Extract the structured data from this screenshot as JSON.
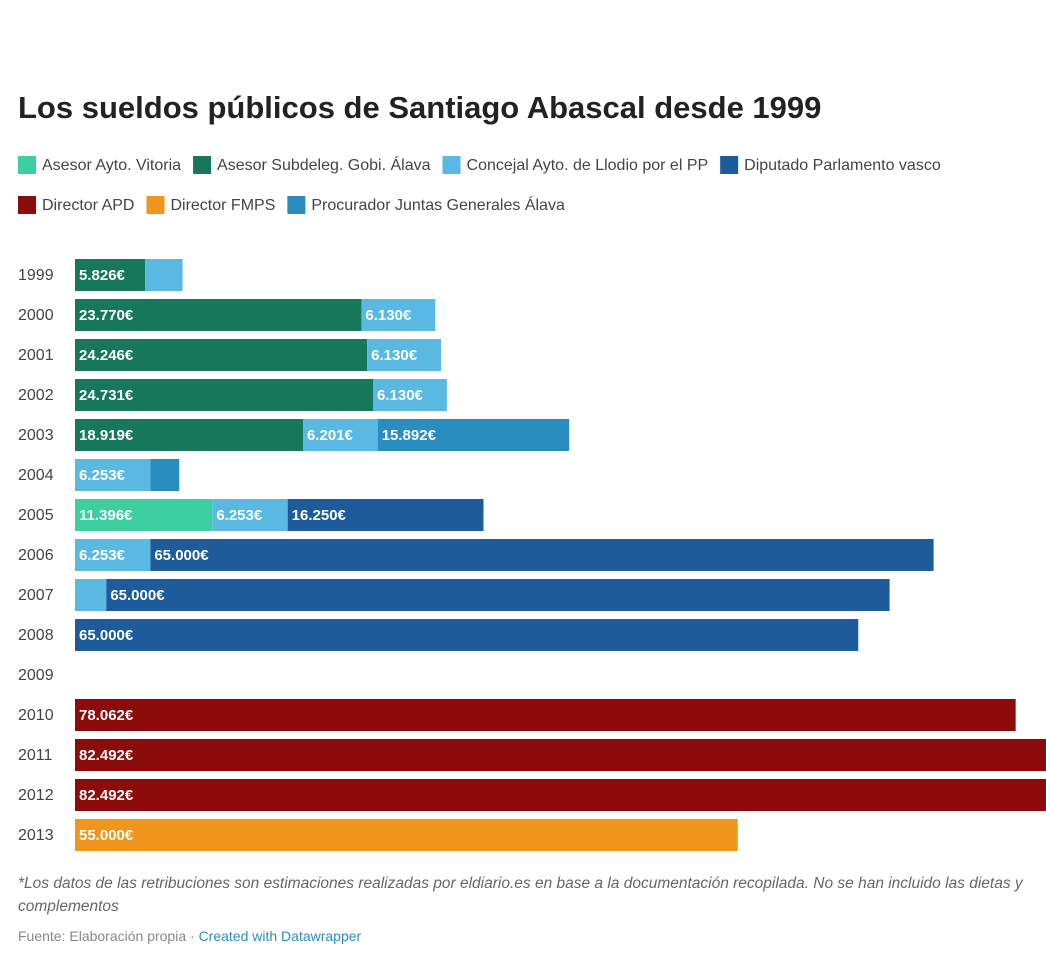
{
  "chart_data": {
    "type": "stacked-bar-horizontal",
    "title": "Los sueldos públicos de Santiago Abascal desde 1999",
    "categories": [
      "1999",
      "2000",
      "2001",
      "2002",
      "2003",
      "2004",
      "2005",
      "2006",
      "2007",
      "2008",
      "2009",
      "2010",
      "2011",
      "2012",
      "2013"
    ],
    "series": [
      {
        "name": "Asesor Ayto. Vitoria",
        "color": "#3dcf9f",
        "values": [
          null,
          null,
          null,
          null,
          null,
          null,
          11396,
          null,
          null,
          null,
          null,
          null,
          null,
          null,
          null
        ],
        "value_labels": [
          null,
          null,
          null,
          null,
          null,
          null,
          "11.396€",
          null,
          null,
          null,
          null,
          null,
          null,
          null,
          null
        ]
      },
      {
        "name": "Asesor Subdeleg. Gobi. Álava",
        "color": "#17775b",
        "values": [
          5826,
          23770,
          24246,
          24731,
          18919,
          null,
          null,
          null,
          null,
          null,
          null,
          null,
          null,
          null,
          null
        ],
        "value_labels": [
          "5.826€",
          "23.770€",
          "24.246€",
          "24.731€",
          "18.919€",
          null,
          null,
          null,
          null,
          null,
          null,
          null,
          null,
          null,
          null
        ]
      },
      {
        "name": "Concejal Ayto. de Llodio por el PP",
        "color": "#5ab9e3",
        "values": [
          3100,
          6130,
          6130,
          6130,
          6201,
          6253,
          6253,
          6253,
          2600,
          null,
          null,
          null,
          null,
          null,
          null
        ],
        "value_labels": [
          null,
          "6.130€",
          "6.130€",
          "6.130€",
          "6.201€",
          "6.253€",
          "6.253€",
          "6.253€",
          null,
          null,
          null,
          null,
          null,
          null,
          null
        ]
      },
      {
        "name": "Diputado Parlamento vasco",
        "color": "#1d5b9b",
        "values": [
          null,
          null,
          null,
          null,
          null,
          null,
          16250,
          65000,
          65000,
          65000,
          null,
          null,
          null,
          null,
          null
        ],
        "value_labels": [
          null,
          null,
          null,
          null,
          null,
          null,
          "16.250€",
          "65.000€",
          "65.000€",
          "65.000€",
          null,
          null,
          null,
          null,
          null
        ]
      },
      {
        "name": "Director APD",
        "color": "#8c0b0b",
        "values": [
          null,
          null,
          null,
          null,
          null,
          null,
          null,
          null,
          null,
          null,
          null,
          78062,
          82492,
          82492,
          null
        ],
        "value_labels": [
          null,
          null,
          null,
          null,
          null,
          null,
          null,
          null,
          null,
          null,
          null,
          "78.062€",
          "82.492€",
          "82.492€",
          null
        ]
      },
      {
        "name": "Director FMPS",
        "color": "#f0961d",
        "values": [
          null,
          null,
          null,
          null,
          null,
          null,
          null,
          null,
          null,
          null,
          null,
          null,
          null,
          null,
          55000
        ],
        "value_labels": [
          null,
          null,
          null,
          null,
          null,
          null,
          null,
          null,
          null,
          null,
          null,
          null,
          null,
          null,
          "55.000€"
        ]
      },
      {
        "name": "Procurador Juntas Generales Álava",
        "color": "#2a8dbf",
        "values": [
          null,
          null,
          null,
          null,
          15892,
          2400,
          null,
          null,
          null,
          null,
          null,
          null,
          null,
          null,
          null
        ],
        "value_labels": [
          null,
          null,
          null,
          null,
          "15.892€",
          null,
          null,
          null,
          null,
          null,
          null,
          null,
          null,
          null,
          null
        ]
      }
    ],
    "note": "*Los datos de las retribuciones son estimaciones realizadas por eldiario.es en base a la documentación recopilada. No se han incluido las dietas y complementos",
    "source": "Fuente: Elaboración propia ·",
    "credit": "Created with Datawrapper"
  }
}
